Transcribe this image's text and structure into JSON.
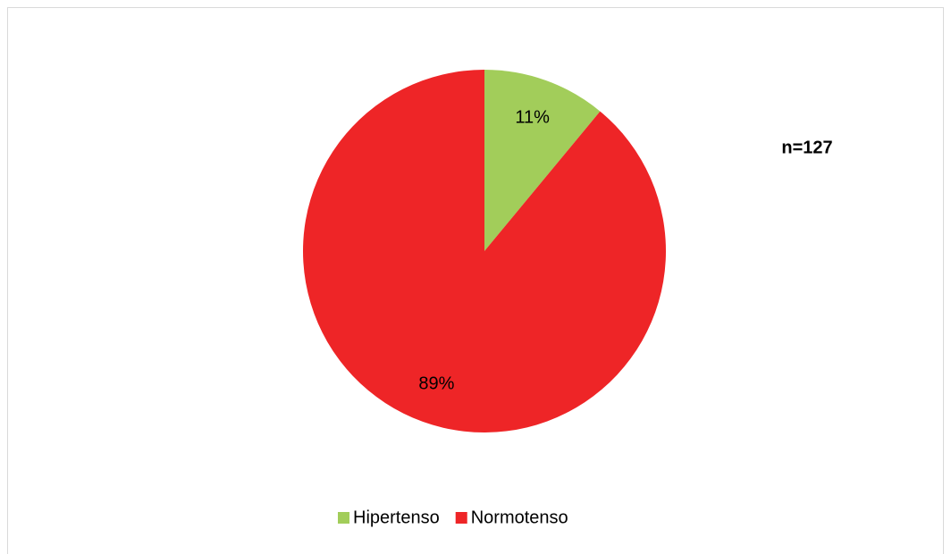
{
  "chart_data": {
    "type": "pie",
    "categories": [
      "Hipertenso",
      "Normotenso"
    ],
    "values": [
      11,
      89
    ],
    "value_labels": [
      "11%",
      "89%"
    ],
    "colors": [
      "#a2cd5a",
      "#ee2527"
    ],
    "annotation": "n=127",
    "legend": "bottom"
  }
}
